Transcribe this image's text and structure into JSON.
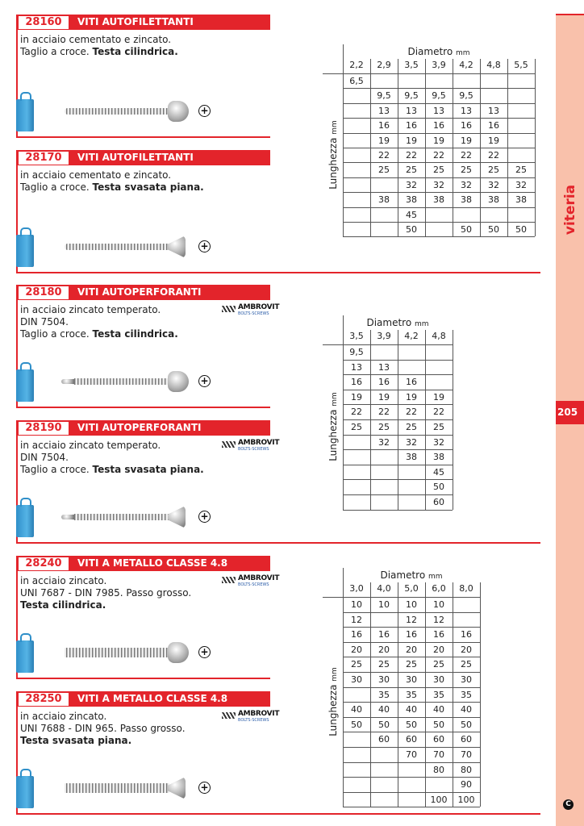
{
  "products": [
    {
      "code": "28160",
      "title": "VITI AUTOFILETTANTI",
      "desc": [
        {
          "normal": "in acciaio cementato e zincato.",
          "bold": ""
        },
        {
          "normal": "Taglio a croce. ",
          "bold": "Testa cilindrica."
        }
      ],
      "head": "cilindrica",
      "tip": "tapping",
      "logo": false
    },
    {
      "code": "28170",
      "title": "VITI AUTOFILETTANTI",
      "desc": [
        {
          "normal": "in acciaio cementato e zincato.",
          "bold": ""
        },
        {
          "normal": "Taglio a croce. ",
          "bold": "Testa svasata piana."
        }
      ],
      "head": "svasata",
      "tip": "tapping",
      "logo": false
    },
    {
      "code": "28180",
      "title": "VITI AUTOPERFORANTI",
      "desc": [
        {
          "normal": "in acciaio zincato temperato.",
          "bold": ""
        },
        {
          "normal": "DIN 7504.",
          "bold": ""
        },
        {
          "normal": "Taglio a croce. ",
          "bold": "Testa cilindrica."
        }
      ],
      "head": "cilindrica",
      "tip": "drill",
      "logo": true
    },
    {
      "code": "28190",
      "title": "VITI AUTOPERFORANTI",
      "desc": [
        {
          "normal": "in acciaio zincato temperato.",
          "bold": ""
        },
        {
          "normal": "DIN 7504.",
          "bold": ""
        },
        {
          "normal": "Taglio a croce. ",
          "bold": "Testa svasata piana."
        }
      ],
      "head": "svasata",
      "tip": "drill",
      "logo": true
    },
    {
      "code": "28240",
      "title": "VITI A METALLO CLASSE 4.8",
      "desc": [
        {
          "normal": "in acciaio zincato.",
          "bold": ""
        },
        {
          "normal": "UNI 7687 - DIN 7985. Passo grosso.",
          "bold": ""
        },
        {
          "normal": "",
          "bold": "Testa cilindrica."
        }
      ],
      "head": "cilindrica",
      "tip": "metric",
      "logo": true
    },
    {
      "code": "28250",
      "title": "VITI A METALLO CLASSE 4.8",
      "desc": [
        {
          "normal": "in acciaio zincato.",
          "bold": ""
        },
        {
          "normal": "UNI 7688 - DIN 965. Passo grosso.",
          "bold": ""
        },
        {
          "normal": "",
          "bold": "Testa svasata piana."
        }
      ],
      "head": "svasata",
      "tip": "metric",
      "logo": true
    }
  ],
  "logo": {
    "name": "AMBROVIT",
    "sub": "BOLTS·SCREWS"
  },
  "cross_symbol": "+",
  "tables": [
    {
      "title": "Diametro",
      "unit": "mm",
      "row_label": "Lunghezza",
      "row_unit": "mm",
      "diameters": [
        "2,2",
        "2,9",
        "3,5",
        "3,9",
        "4,2",
        "4,8",
        "5,5"
      ],
      "rows": [
        [
          "6,5",
          "",
          "",
          "",
          "",
          "",
          ""
        ],
        [
          "",
          "9,5",
          "9,5",
          "9,5",
          "9,5",
          "",
          ""
        ],
        [
          "",
          "13",
          "13",
          "13",
          "13",
          "13",
          ""
        ],
        [
          "",
          "16",
          "16",
          "16",
          "16",
          "16",
          ""
        ],
        [
          "",
          "19",
          "19",
          "19",
          "19",
          "19",
          ""
        ],
        [
          "",
          "22",
          "22",
          "22",
          "22",
          "22",
          ""
        ],
        [
          "",
          "25",
          "25",
          "25",
          "25",
          "25",
          "25"
        ],
        [
          "",
          "",
          "32",
          "32",
          "32",
          "32",
          "32"
        ],
        [
          "",
          "38",
          "38",
          "38",
          "38",
          "38",
          "38"
        ],
        [
          "",
          "",
          "45",
          "",
          "",
          "",
          ""
        ],
        [
          "",
          "",
          "50",
          "",
          "50",
          "50",
          "50"
        ]
      ]
    },
    {
      "title": "Diametro",
      "unit": "mm",
      "row_label": "Lunghezza",
      "row_unit": "mm",
      "diameters": [
        "3,5",
        "3,9",
        "4,2",
        "4,8"
      ],
      "rows": [
        [
          "9,5",
          "",
          "",
          ""
        ],
        [
          "13",
          "13",
          "",
          ""
        ],
        [
          "16",
          "16",
          "16",
          ""
        ],
        [
          "19",
          "19",
          "19",
          "19"
        ],
        [
          "22",
          "22",
          "22",
          "22"
        ],
        [
          "25",
          "25",
          "25",
          "25"
        ],
        [
          "",
          "32",
          "32",
          "32"
        ],
        [
          "",
          "",
          "38",
          "38"
        ],
        [
          "",
          "",
          "",
          "45"
        ],
        [
          "",
          "",
          "",
          "50"
        ],
        [
          "",
          "",
          "",
          "60"
        ]
      ]
    },
    {
      "title": "Diametro",
      "unit": "mm",
      "row_label": "Lunghezza",
      "row_unit": "mm",
      "diameters": [
        "3,0",
        "4,0",
        "5,0",
        "6,0",
        "8,0"
      ],
      "rows": [
        [
          "10",
          "10",
          "10",
          "10",
          ""
        ],
        [
          "12",
          "",
          "12",
          "12",
          ""
        ],
        [
          "16",
          "16",
          "16",
          "16",
          "16"
        ],
        [
          "20",
          "20",
          "20",
          "20",
          "20"
        ],
        [
          "25",
          "25",
          "25",
          "25",
          "25"
        ],
        [
          "30",
          "30",
          "30",
          "30",
          "30"
        ],
        [
          "",
          "35",
          "35",
          "35",
          "35"
        ],
        [
          "40",
          "40",
          "40",
          "40",
          "40"
        ],
        [
          "50",
          "50",
          "50",
          "50",
          "50"
        ],
        [
          "",
          "60",
          "60",
          "60",
          "60"
        ],
        [
          "",
          "",
          "70",
          "70",
          "70"
        ],
        [
          "",
          "",
          "",
          "80",
          "80"
        ],
        [
          "",
          "",
          "",
          "",
          "90"
        ],
        [
          "",
          "",
          "",
          "100",
          "100"
        ]
      ]
    }
  ],
  "sidebar": {
    "section": "viteria",
    "page_number": "205",
    "logo_letter": "C"
  },
  "colors": {
    "accent": "#e3242b",
    "strip": "#f9c1ab"
  }
}
